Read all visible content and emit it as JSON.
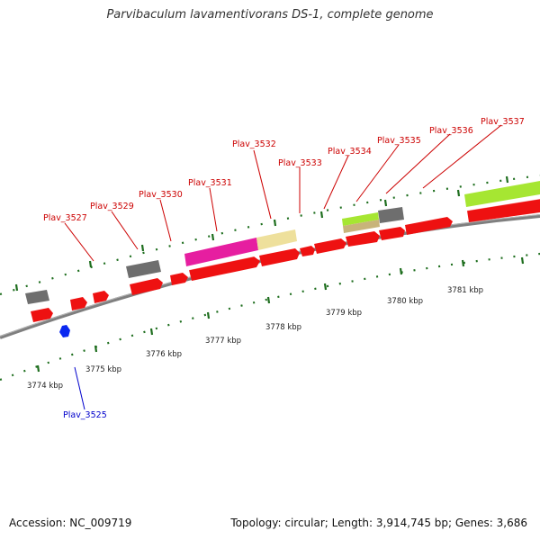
{
  "title": "Parvibaculum lavamentivorans DS-1, complete genome",
  "footer": {
    "accession": "Accession: NC_009719",
    "topology": "Topology: circular; Length: 3,914,745 bp; Genes: 3,686"
  },
  "colors": {
    "backbone": "#7f7f7f",
    "gene_red": "#ee1111",
    "gene_gray": "#6e6e6e",
    "gene_magenta": "#e61ea0",
    "gene_khaki": "#eee09c",
    "gene_lime": "#a6e632",
    "gene_blue": "#0a28f0",
    "tick_green": "#1e6e1e",
    "label_red": "#cc0000",
    "label_blue": "#0000cc"
  },
  "scale_labels": [
    "3774 kbp",
    "3775 kbp",
    "3776 kbp",
    "3777 kbp",
    "3778 kbp",
    "3779 kbp",
    "3780 kbp",
    "3781 kbp"
  ],
  "gene_labels": [
    {
      "text": "Plav_3525",
      "strand": "minus"
    },
    {
      "text": "Plav_3527",
      "strand": "plus"
    },
    {
      "text": "Plav_3529",
      "strand": "plus"
    },
    {
      "text": "Plav_3530",
      "strand": "plus"
    },
    {
      "text": "Plav_3531",
      "strand": "plus"
    },
    {
      "text": "Plav_3532",
      "strand": "plus"
    },
    {
      "text": "Plav_3533",
      "strand": "plus"
    },
    {
      "text": "Plav_3534",
      "strand": "plus"
    },
    {
      "text": "Plav_3535",
      "strand": "plus"
    },
    {
      "text": "Plav_3536",
      "strand": "plus"
    },
    {
      "text": "Plav_3537",
      "strand": "plus"
    }
  ]
}
